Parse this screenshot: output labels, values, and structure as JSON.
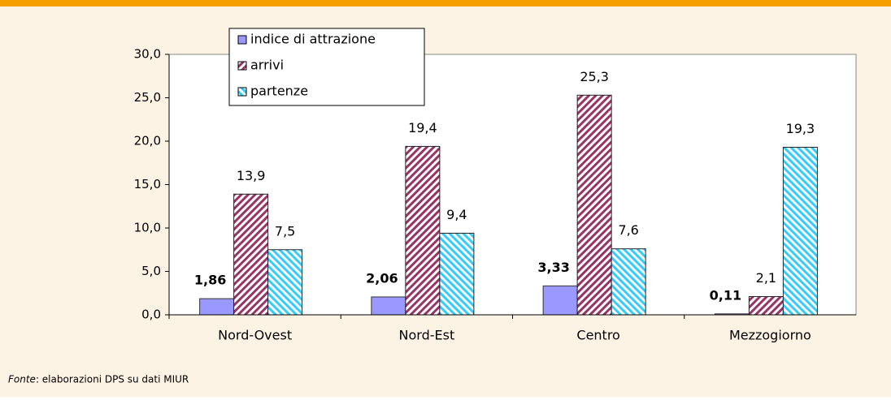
{
  "chart_data": {
    "type": "bar",
    "categories": [
      "Nord-Ovest",
      "Nord-Est",
      "Centro",
      "Mezzogiorno"
    ],
    "series": [
      {
        "name": "indice di attrazione",
        "color": "#9999ff",
        "values": [
          1.86,
          2.06,
          3.33,
          0.11
        ],
        "value_labels": [
          "1,86",
          "2,06",
          "3,33",
          "0,11"
        ]
      },
      {
        "name": "arrivi",
        "color": "#993366",
        "values": [
          13.9,
          19.4,
          25.3,
          2.1
        ],
        "value_labels": [
          "13,9",
          "19,4",
          "25,3",
          "2,1"
        ]
      },
      {
        "name": "partenze",
        "color": "#33ccff",
        "values": [
          7.5,
          9.4,
          7.6,
          19.3
        ],
        "value_labels": [
          "7,5",
          "9,4",
          "7,6",
          "19,3"
        ]
      }
    ],
    "ylim": [
      0,
      30
    ],
    "yticks": [
      {
        "value": 0,
        "label": "0,0"
      },
      {
        "value": 5,
        "label": "5,0"
      },
      {
        "value": 10,
        "label": "10,0"
      },
      {
        "value": 15,
        "label": "15,0"
      },
      {
        "value": 20,
        "label": "20,0"
      },
      {
        "value": 25,
        "label": "25,0"
      },
      {
        "value": 30,
        "label": "30,0"
      }
    ],
    "grid": false,
    "legend": "top-left"
  },
  "source": {
    "label": "Fonte",
    "text": ": elaborazioni DPS su dati MIUR"
  }
}
